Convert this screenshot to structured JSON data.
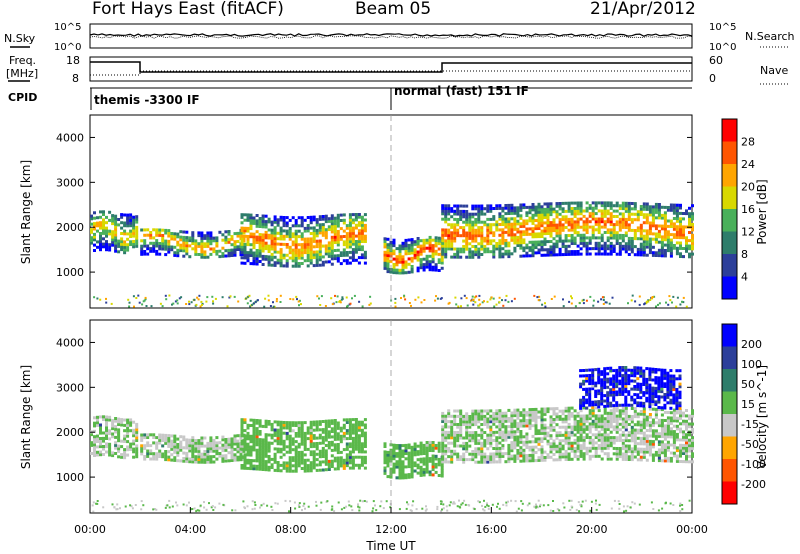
{
  "header": {
    "title": "Fort Hays East (fitACF)",
    "beam": "Beam 05",
    "date": "21/Apr/2012"
  },
  "strips": {
    "nsky_label": "N.Sky",
    "nsearch_label": "N.Search",
    "nsky_ticks": [
      "10^5",
      "10^0"
    ],
    "nsearch_ticks": [
      "10^5",
      "10^0"
    ],
    "freq_label_1": "Freq.",
    "freq_label_2": "[MHz]",
    "freq_ticks": [
      "18",
      "8"
    ],
    "nave_label": "Nave",
    "nave_ticks": [
      "60",
      "0"
    ],
    "cpid_label": "CPID",
    "cpid_modes": [
      {
        "name": "themis -3300 IF",
        "start_h": 0,
        "end_h": 12
      },
      {
        "name": "normal (fast) 151 IF",
        "start_h": 12,
        "end_h": 24
      }
    ]
  },
  "chart_data": [
    {
      "type": "heatmap",
      "panel": "power",
      "xlabel": "",
      "ylabel": "Slant Range [km]",
      "xlim": [
        0,
        24
      ],
      "ylim": [
        200,
        4500
      ],
      "y_ticks": [
        "4000",
        "3000",
        "2000",
        "1000"
      ],
      "colorbar": {
        "label": "Power [dB]",
        "ticks": [
          "28",
          "24",
          "20",
          "16",
          "12",
          "8",
          "4"
        ],
        "range": [
          0,
          30
        ],
        "colors": [
          "#0000ff",
          "#2c3f9a",
          "#2e7d6b",
          "#49b05a",
          "#d8d800",
          "#ffa500",
          "#ff5500",
          "#ff0000"
        ]
      },
      "echo_regions": [
        {
          "t0": 0.0,
          "t1": 1.9,
          "r0": 1500,
          "r1": 2400,
          "peak_db": 20
        },
        {
          "t0": 2.0,
          "t1": 6.2,
          "r0": 1400,
          "r1": 2000,
          "peak_db": 22
        },
        {
          "t0": 6.0,
          "t1": 11.0,
          "r0": 1200,
          "r1": 2300,
          "peak_db": 24
        },
        {
          "t0": 11.7,
          "t1": 14.0,
          "r0": 1050,
          "r1": 1800,
          "peak_db": 26
        },
        {
          "t0": 14.0,
          "t1": 24.0,
          "r0": 1400,
          "r1": 2600,
          "peak_db": 24
        }
      ]
    },
    {
      "type": "heatmap",
      "panel": "velocity",
      "xlabel": "Time UT",
      "ylabel": "Slant Range [km]",
      "xlim": [
        0,
        24
      ],
      "ylim": [
        200,
        4500
      ],
      "x_ticks": [
        "00:00",
        "04:00",
        "08:00",
        "12:00",
        "16:00",
        "20:00",
        "00:00"
      ],
      "y_ticks": [
        "4000",
        "3000",
        "2000",
        "1000"
      ],
      "colorbar": {
        "label": "Velocity [m s^-1]",
        "ticks": [
          "200",
          "100",
          "50",
          "15",
          "-15",
          "-50",
          "-100",
          "-200"
        ],
        "range": [
          -250,
          250
        ],
        "colors": [
          "#0000ff",
          "#2c3f9a",
          "#2e7d6b",
          "#5ab84a",
          "#c8c8c8",
          "#ffa500",
          "#ff5500",
          "#ff0000"
        ]
      },
      "echo_regions": [
        {
          "t0": 0.0,
          "t1": 1.9,
          "r0": 1500,
          "r1": 2400,
          "vel": 0
        },
        {
          "t0": 2.0,
          "t1": 6.2,
          "r0": 1400,
          "r1": 2000,
          "vel": 0
        },
        {
          "t0": 6.0,
          "t1": 11.0,
          "r0": 1200,
          "r1": 2300,
          "vel": 30
        },
        {
          "t0": 11.7,
          "t1": 14.0,
          "r0": 1050,
          "r1": 1800,
          "vel": 40
        },
        {
          "t0": 14.0,
          "t1": 24.0,
          "r0": 1400,
          "r1": 2600,
          "vel": 0
        },
        {
          "t0": 19.5,
          "t1": 23.5,
          "r0": 2600,
          "r1": 3500,
          "vel": 200
        }
      ]
    }
  ]
}
